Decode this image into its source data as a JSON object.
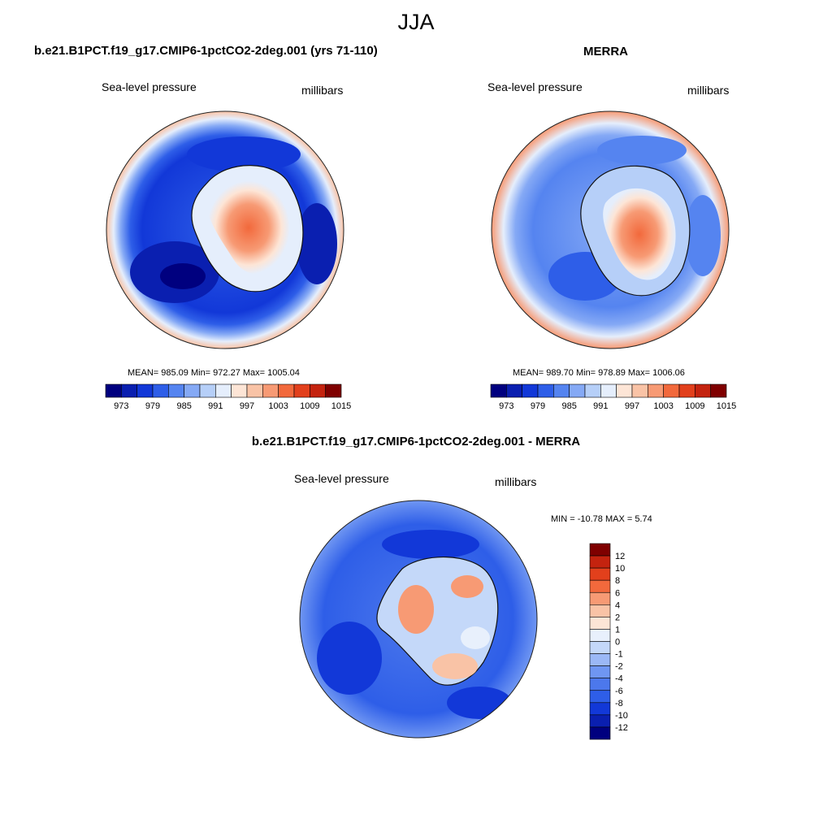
{
  "figure": {
    "season": "JJA"
  },
  "colors": {
    "abs_scale": [
      "#00007f",
      "#0a1fb0",
      "#1238d8",
      "#2e5ee8",
      "#5584f0",
      "#85a9f5",
      "#b6cff8",
      "#e5eefc",
      "#fde5d6",
      "#f9c3a6",
      "#f79a74",
      "#f2693c",
      "#e2401c",
      "#c4230f",
      "#7f0000"
    ],
    "diff_scale": [
      "#00007f",
      "#0a1fb0",
      "#1238d8",
      "#2e5ee8",
      "#4c78ec",
      "#6f96f2",
      "#9bb8f6",
      "#c4d8f9",
      "#e8f0fc",
      "#fde5d6",
      "#f9c3a6",
      "#f79a74",
      "#f2693c",
      "#e2401c",
      "#c4230f",
      "#7f0000"
    ],
    "coastline": "#111111"
  },
  "panels": [
    {
      "id": "model",
      "title": "b.e21.B1PCT.f19_g17.CMIP6-1pctCO2-2deg.001 (yrs 71-110)",
      "left_label": "Sea-level pressure",
      "right_label": "millibars",
      "stats": "MEAN= 985.09  Min= 972.27  Max= 1005.04",
      "colorbar_ticks": [
        "973",
        "979",
        "985",
        "991",
        "997",
        "1003",
        "1009",
        "1015"
      ]
    },
    {
      "id": "obs",
      "title": "MERRA",
      "left_label": "Sea-level pressure",
      "right_label": "millibars",
      "stats": "MEAN= 989.70  Min= 978.89  Max= 1006.06",
      "colorbar_ticks": [
        "973",
        "979",
        "985",
        "991",
        "997",
        "1003",
        "1009",
        "1015"
      ]
    },
    {
      "id": "diff",
      "title": "b.e21.B1PCT.f19_g17.CMIP6-1pctCO2-2deg.001 - MERRA",
      "left_label": "Sea-level pressure",
      "right_label": "millibars",
      "stats": "MIN = -10.78 MAX =   5.74",
      "colorbar_ticks": [
        "12",
        "10",
        "8",
        "6",
        "4",
        "2",
        "1",
        "0",
        "-1",
        "-2",
        "-4",
        "-6",
        "-8",
        "-10",
        "-12"
      ]
    }
  ]
}
